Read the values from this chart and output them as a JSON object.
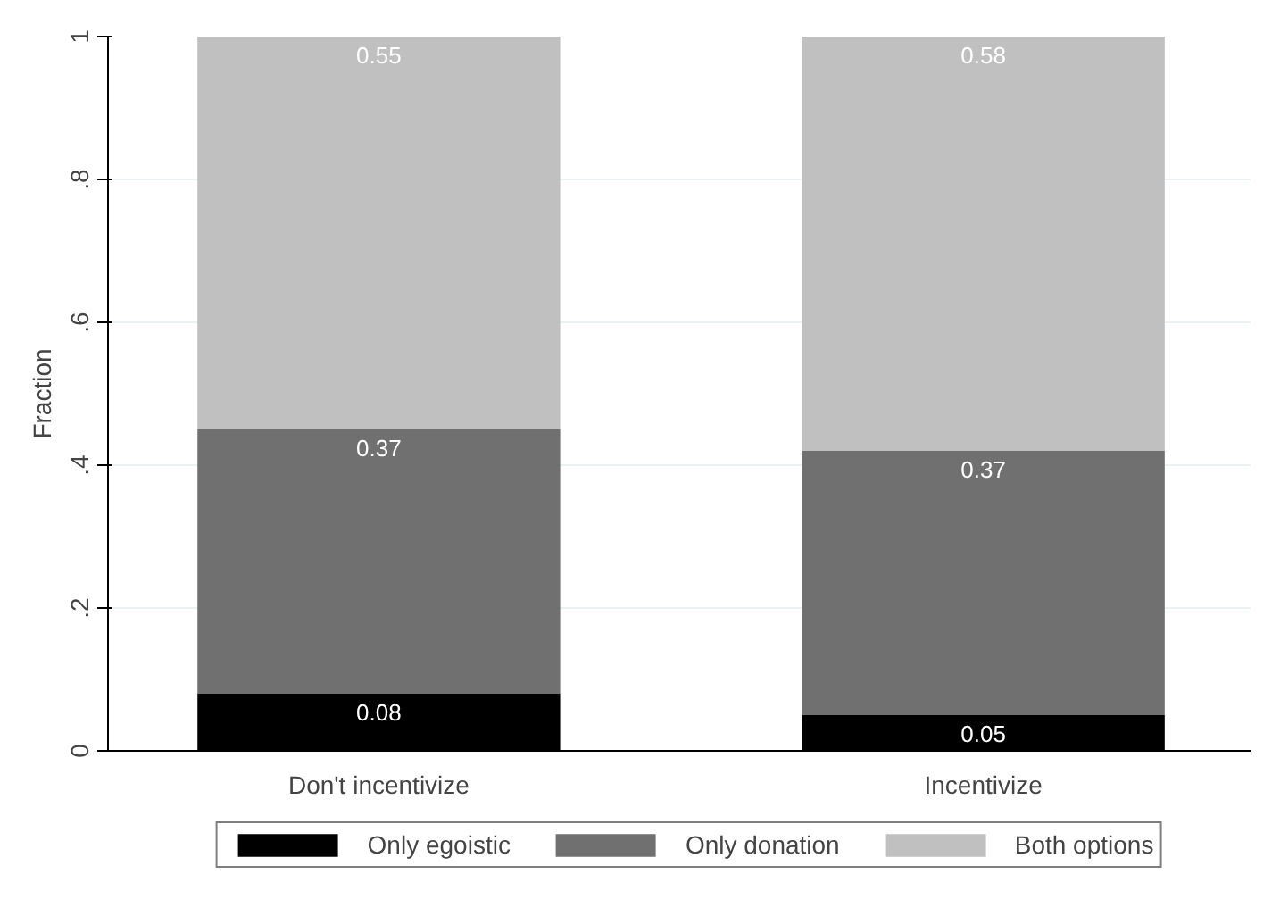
{
  "chart_data": {
    "type": "bar",
    "stacked": true,
    "ylabel": "Fraction",
    "categories": [
      "Don't incentivize",
      "Incentivize"
    ],
    "series": [
      {
        "name": "Only egoistic",
        "color": "#000000",
        "values": [
          0.08,
          0.05
        ]
      },
      {
        "name": "Only donation",
        "color": "#707070",
        "values": [
          0.37,
          0.37
        ]
      },
      {
        "name": "Both options",
        "color": "#c0c0c0",
        "values": [
          0.55,
          0.58
        ]
      }
    ],
    "ylim": [
      0,
      1
    ],
    "yticks": [
      0,
      {
        "value": 0.2,
        "label": ".2"
      },
      {
        "value": 0.4,
        "label": ".4"
      },
      {
        "value": 0.6,
        "label": ".6"
      },
      {
        "value": 0.8,
        "label": ".8"
      },
      1
    ],
    "grid": "y",
    "legend": "bottom",
    "data_labels": true
  }
}
